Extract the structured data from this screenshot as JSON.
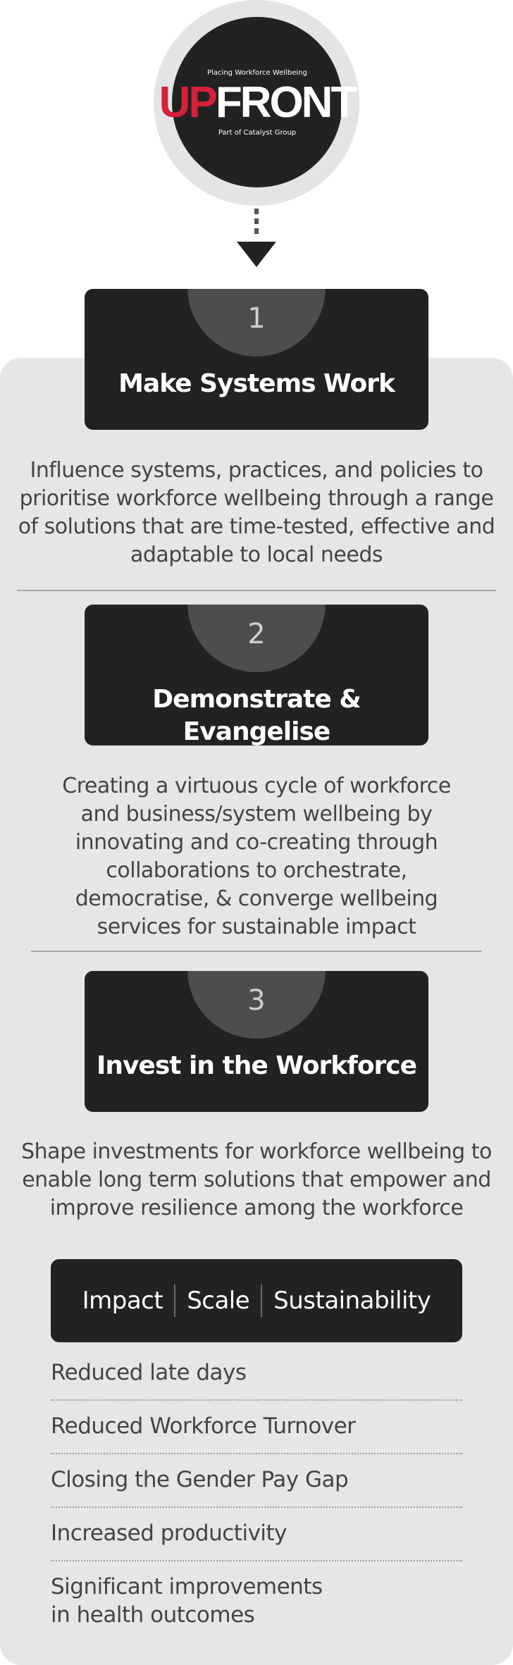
{
  "logo": {
    "tagline": "Placing Workforce Wellbeing",
    "word_up": "UP",
    "word_front": "FRONT",
    "subtitle": "Part of Catalyst Group",
    "accent_color": "#d7203a"
  },
  "steps": [
    {
      "number": "1",
      "title": "Make Systems Work",
      "description": "Influence systems, practices, and policies to prioritise workforce wellbeing through a range of solutions that are time-tested, effective and adaptable to local needs"
    },
    {
      "number": "2",
      "title": "Demonstrate & Evangelise",
      "description": "Creating a virtuous cycle of workforce and business/system wellbeing by innovating and co-creating through collaborations to orchestrate, democratise, & converge wellbeing services for sustainable impact"
    },
    {
      "number": "3",
      "title": "Invest in the Workforce",
      "description": "Shape investments for workforce wellbeing to enable long term solutions that empower and improve resilience among the workforce"
    }
  ],
  "tags": [
    "Impact",
    "Scale",
    "Sustainability"
  ],
  "outcomes": [
    "Reduced late days",
    "Reduced Workforce Turnover",
    "Closing the Gender Pay Gap",
    "Increased productivity",
    "Significant improvements in health outcomes"
  ]
}
